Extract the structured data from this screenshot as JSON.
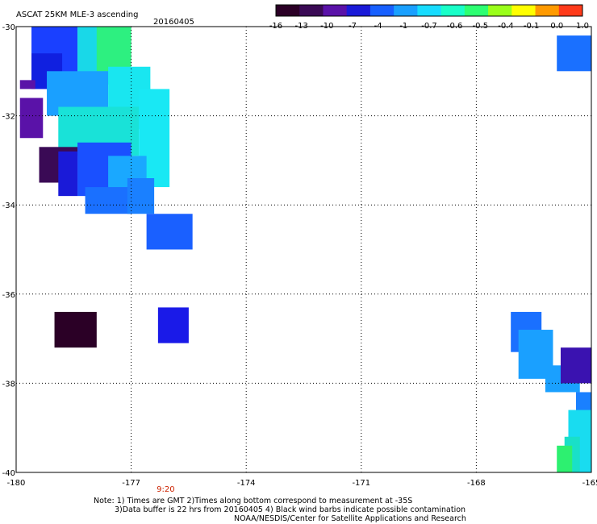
{
  "header": {
    "title": "ASCAT 25KM MLE-3 ascending",
    "date": "20160405"
  },
  "colorbar": {
    "labels": [
      "-16",
      "-13",
      "-10",
      "-7",
      "-4",
      "-1",
      "-0.7",
      "-0.6",
      "-0.5",
      "-0.4",
      "-0.1",
      "0.0",
      "1.0"
    ],
    "colors": [
      "#2b0026",
      "#3a0a55",
      "#5a12a8",
      "#1a1ad8",
      "#1860ff",
      "#1aa0ff",
      "#18dcff",
      "#19ffc8",
      "#2dff72",
      "#9aff1a",
      "#ffff00",
      "#ff9a00",
      "#ff3a1a"
    ]
  },
  "chart_data": {
    "type": "heatmap",
    "title": "ASCAT 25KM MLE-3 ascending",
    "xlim": [
      -180,
      -165
    ],
    "ylim": [
      -40,
      -30
    ],
    "x_ticks": [
      "-180",
      "-177",
      "-174",
      "-171",
      "-168",
      "-165"
    ],
    "y_ticks": [
      "-30",
      "-32",
      "-34",
      "-36",
      "-38",
      "-40"
    ],
    "x_tick_values": [
      -180,
      -177,
      -174,
      -171,
      -168,
      -165
    ],
    "y_tick_values": [
      -30,
      -32,
      -34,
      -36,
      -38,
      -40
    ],
    "grid": true,
    "time_label": "9:20",
    "time_label_lon": -176.1,
    "cells": [
      {
        "lon": [
          -179.6,
          -178.4
        ],
        "lat": [
          -30.0,
          -31.3
        ],
        "color": "#1a40ff"
      },
      {
        "lon": [
          -178.4,
          -177.0
        ],
        "lat": [
          -30.0,
          -31.3
        ],
        "color": "#19d8e8"
      },
      {
        "lon": [
          -177.9,
          -177.0
        ],
        "lat": [
          -30.0,
          -31.0
        ],
        "color": "#2df080"
      },
      {
        "lon": [
          -179.6,
          -178.8
        ],
        "lat": [
          -30.6,
          -31.4
        ],
        "color": "#1020e0"
      },
      {
        "lon": [
          -179.2,
          -177.6
        ],
        "lat": [
          -31.0,
          -32.0
        ],
        "color": "#1aa0ff"
      },
      {
        "lon": [
          -177.6,
          -176.5
        ],
        "lat": [
          -30.9,
          -32.3
        ],
        "color": "#19e6f0"
      },
      {
        "lon": [
          -178.9,
          -176.8
        ],
        "lat": [
          -31.8,
          -32.9
        ],
        "color": "#19e2d8"
      },
      {
        "lon": [
          -176.8,
          -176.0
        ],
        "lat": [
          -31.4,
          -33.6
        ],
        "color": "#19e8f4"
      },
      {
        "lon": [
          -179.9,
          -179.5
        ],
        "lat": [
          -31.2,
          -31.4
        ],
        "color": "#5a12a8"
      },
      {
        "lon": [
          -179.9,
          -179.3
        ],
        "lat": [
          -31.6,
          -32.5
        ],
        "color": "#5a12a8"
      },
      {
        "lon": [
          -179.4,
          -178.4
        ],
        "lat": [
          -32.7,
          -33.5
        ],
        "color": "#3a0a55"
      },
      {
        "lon": [
          -178.4,
          -177.0
        ],
        "lat": [
          -32.6,
          -33.8
        ],
        "color": "#1a50ff"
      },
      {
        "lon": [
          -178.9,
          -178.4
        ],
        "lat": [
          -32.8,
          -33.8
        ],
        "color": "#1a1ad8"
      },
      {
        "lon": [
          -177.6,
          -176.6
        ],
        "lat": [
          -32.9,
          -34.1
        ],
        "color": "#1aa8ff"
      },
      {
        "lon": [
          -178.2,
          -177.0
        ],
        "lat": [
          -33.6,
          -34.2
        ],
        "color": "#1a70ff"
      },
      {
        "lon": [
          -177.1,
          -176.4
        ],
        "lat": [
          -33.4,
          -34.2
        ],
        "color": "#1a80ff"
      },
      {
        "lon": [
          -176.6,
          -175.4
        ],
        "lat": [
          -34.2,
          -35.0
        ],
        "color": "#1a60ff"
      },
      {
        "lon": [
          -179.0,
          -177.9
        ],
        "lat": [
          -36.4,
          -37.2
        ],
        "color": "#2b0026"
      },
      {
        "lon": [
          -176.3,
          -175.5
        ],
        "lat": [
          -36.3,
          -37.1
        ],
        "color": "#1a1ae8"
      },
      {
        "lon": [
          -165.9,
          -165.0
        ],
        "lat": [
          -30.2,
          -31.0
        ],
        "color": "#1a70ff"
      },
      {
        "lon": [
          -167.1,
          -166.3
        ],
        "lat": [
          -36.4,
          -37.3
        ],
        "color": "#1a70ff"
      },
      {
        "lon": [
          -166.9,
          -166.0
        ],
        "lat": [
          -36.8,
          -37.9
        ],
        "color": "#1aa0ff"
      },
      {
        "lon": [
          -166.2,
          -165.3
        ],
        "lat": [
          -37.6,
          -38.2
        ],
        "color": "#1aa0ff"
      },
      {
        "lon": [
          -165.8,
          -165.0
        ],
        "lat": [
          -37.2,
          -38.0
        ],
        "color": "#3a12b0"
      },
      {
        "lon": [
          -165.4,
          -165.0
        ],
        "lat": [
          -38.2,
          -39.0
        ],
        "color": "#1a80ff"
      },
      {
        "lon": [
          -165.6,
          -165.0
        ],
        "lat": [
          -38.6,
          -40.0
        ],
        "color": "#19dcf0"
      },
      {
        "lon": [
          -165.7,
          -165.3
        ],
        "lat": [
          -39.2,
          -40.0
        ],
        "color": "#19e0c8"
      },
      {
        "lon": [
          -165.9,
          -165.5
        ],
        "lat": [
          -39.4,
          -40.0
        ],
        "color": "#2df070"
      }
    ]
  },
  "notes": {
    "line1": "Note: 1) Times are GMT 2)Times along bottom correspond to measurement at -35S",
    "line2": "3)Data buffer is 22 hrs from 20160405 4) Black wind barbs indicate possible contamination",
    "line3": "NOAA/NESDIS/Center for Satellite Applications and Research"
  }
}
